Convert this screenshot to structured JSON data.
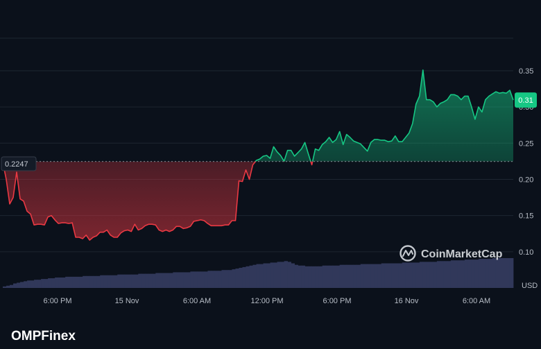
{
  "brand": {
    "watermark_text": "CoinMarketCap",
    "footer_logo_text": "OMPFinex",
    "accent_up": "#16c784",
    "accent_down": "#ea3943"
  },
  "currency_label": "USD",
  "chart_data": {
    "type": "area",
    "title": "",
    "x_tick_labels": [
      "6:00 PM",
      "15 Nov",
      "6:00 AM",
      "12:00 PM",
      "6:00 PM",
      "16 Nov",
      "6:00 AM"
    ],
    "y_tick_labels": [
      "0.10",
      "0.15",
      "0.20",
      "0.25",
      "0.30",
      "0.35"
    ],
    "ylim": [
      0.05,
      0.395
    ],
    "baseline": {
      "value": 0.2247,
      "label": "0.2247"
    },
    "current": {
      "value": 0.3095,
      "label": "0.31"
    },
    "grid": true,
    "series": [
      {
        "price": [
          0.224,
          0.2,
          0.166,
          0.175,
          0.21,
          0.173,
          0.17,
          0.156,
          0.152,
          0.137,
          0.138,
          0.138,
          0.137,
          0.148,
          0.15,
          0.144,
          0.139,
          0.14,
          0.14,
          0.139,
          0.14,
          0.12,
          0.12,
          0.118,
          0.123,
          0.116,
          0.12,
          0.122,
          0.127,
          0.127,
          0.13,
          0.123,
          0.12,
          0.12,
          0.126,
          0.129,
          0.13,
          0.128,
          0.138,
          0.13,
          0.132,
          0.136,
          0.138,
          0.138,
          0.137,
          0.13,
          0.128,
          0.13,
          0.128,
          0.13,
          0.135,
          0.135,
          0.132,
          0.133,
          0.135,
          0.142,
          0.143,
          0.144,
          0.143,
          0.139,
          0.136,
          0.136,
          0.136,
          0.136,
          0.137,
          0.137,
          0.143,
          0.143,
          0.198,
          0.197,
          0.213,
          0.2,
          0.22,
          0.226,
          0.228,
          0.232,
          0.233,
          0.229,
          0.245,
          0.238,
          0.233,
          0.225,
          0.24,
          0.24,
          0.232,
          0.237,
          0.242,
          0.251,
          0.235,
          0.22,
          0.242,
          0.24,
          0.248,
          0.252,
          0.258,
          0.251,
          0.255,
          0.266,
          0.248,
          0.262,
          0.258,
          0.253,
          0.251,
          0.249,
          0.244,
          0.239,
          0.251,
          0.255,
          0.255,
          0.254,
          0.254,
          0.252,
          0.253,
          0.26,
          0.252,
          0.252,
          0.258,
          0.264,
          0.277,
          0.304,
          0.315,
          0.351,
          0.31,
          0.31,
          0.307,
          0.3,
          0.305,
          0.307,
          0.31,
          0.317,
          0.317,
          0.315,
          0.31,
          0.315,
          0.315,
          0.3,
          0.283,
          0.3,
          0.293,
          0.31,
          0.315,
          0.318,
          0.321,
          0.319,
          0.32,
          0.319,
          0.323,
          0.3095
        ],
        "volume": [
          2,
          3,
          4,
          6,
          7,
          8,
          9,
          10,
          10,
          11,
          11,
          12,
          12,
          13,
          13,
          14,
          14,
          14,
          15,
          15,
          15,
          15,
          15,
          16,
          16,
          16,
          16,
          16,
          17,
          17,
          17,
          17,
          17,
          18,
          18,
          18,
          18,
          18,
          18,
          19,
          19,
          19,
          19,
          19,
          20,
          20,
          20,
          20,
          20,
          21,
          21,
          21,
          21,
          21,
          22,
          22,
          22,
          22,
          22,
          23,
          23,
          23,
          23,
          24,
          24,
          24,
          25,
          26,
          27,
          28,
          29,
          30,
          31,
          32,
          32,
          33,
          33,
          34,
          34,
          35,
          35,
          36,
          35,
          33,
          31,
          30,
          30,
          29,
          29,
          29,
          29,
          29,
          30,
          30,
          30,
          30,
          30,
          31,
          31,
          31,
          31,
          31,
          31,
          32,
          32,
          32,
          32,
          32,
          32,
          33,
          33,
          33,
          33,
          33,
          33,
          34,
          34,
          34,
          34,
          34,
          35,
          35,
          35,
          35,
          35,
          36,
          36,
          36,
          36,
          37,
          37,
          37,
          37,
          38,
          38,
          38,
          38,
          39,
          39,
          39,
          39,
          40,
          40,
          40,
          40,
          40,
          40
        ]
      }
    ]
  }
}
